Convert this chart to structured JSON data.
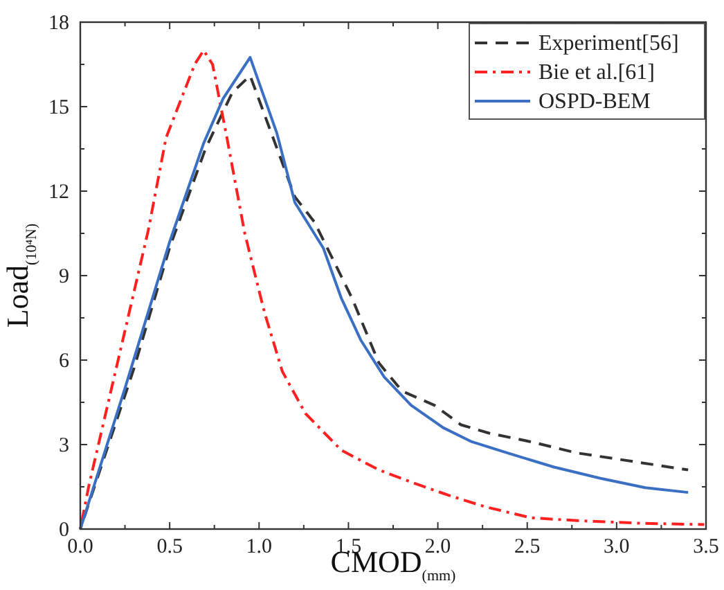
{
  "chart_data": {
    "type": "line",
    "xlabel": "CMOD$_{(mm)}$",
    "ylabel": "Load$_{(10⁴N)}$",
    "xlim": [
      0,
      3.5
    ],
    "ylim": [
      0,
      18
    ],
    "xticks": [
      {
        "value": 0,
        "label": "0.0"
      },
      {
        "value": 0.5,
        "label": "0.5"
      },
      {
        "value": 1,
        "label": "1.0"
      },
      {
        "value": 1.5,
        "label": "1.5"
      },
      {
        "value": 2,
        "label": "2.0"
      },
      {
        "value": 2.5,
        "label": "2.5"
      },
      {
        "value": 3,
        "label": "3.0"
      },
      {
        "value": 3.5,
        "label": "3.5"
      }
    ],
    "yticks": [
      0,
      3,
      6,
      9,
      12,
      15,
      18
    ],
    "grid": false,
    "legend": "top right",
    "series": [
      {
        "name": "Experiment[56]",
        "color": "#333333",
        "line_style": "dashed",
        "x": [
          0,
          0.3,
          0.5,
          0.7,
          0.85,
          0.95,
          1.2,
          1.31,
          1.52,
          1.67,
          1.8,
          1.98,
          2.13,
          2.29,
          2.52,
          2.78,
          3.04,
          3.4
        ],
        "values": [
          0,
          5.7,
          10,
          13.5,
          15.5,
          16.1,
          11.8,
          10.9,
          8.2,
          5.9,
          4.9,
          4.4,
          3.7,
          3.4,
          3.1,
          2.7,
          2.45,
          2.1
        ]
      },
      {
        "name": "Bie et al.[61]",
        "color": "#ff2020",
        "line_style": "dashdot",
        "x": [
          0,
          0.05,
          0.23,
          0.38,
          0.48,
          0.56,
          0.64,
          0.69,
          0.74,
          0.82,
          0.92,
          1.03,
          1.13,
          1.26,
          1.46,
          1.67,
          1.88,
          2.06,
          2.26,
          2.52,
          2.78,
          3.16,
          3.49
        ],
        "values": [
          0,
          1.6,
          6.5,
          10.6,
          13.9,
          15.2,
          16.5,
          17,
          16.5,
          13.9,
          10.5,
          7.7,
          5.6,
          4.1,
          2.8,
          2.1,
          1.6,
          1.2,
          0.8,
          0.4,
          0.3,
          0.2,
          0.16
        ]
      },
      {
        "name": "OSPD-BEM",
        "color": "#3a6fc4",
        "line_style": "solid",
        "x": [
          0,
          0.25,
          0.5,
          0.69,
          0.8,
          0.95,
          1.1,
          1.2,
          1.36,
          1.46,
          1.57,
          1.7,
          1.85,
          2.03,
          2.19,
          2.39,
          2.65,
          2.91,
          3.16,
          3.4
        ],
        "values": [
          0,
          5,
          10.2,
          13.7,
          15.3,
          16.75,
          14.05,
          11.6,
          9.97,
          8.2,
          6.7,
          5.4,
          4.4,
          3.6,
          3.1,
          2.7,
          2.2,
          1.8,
          1.47,
          1.3
        ]
      }
    ]
  }
}
